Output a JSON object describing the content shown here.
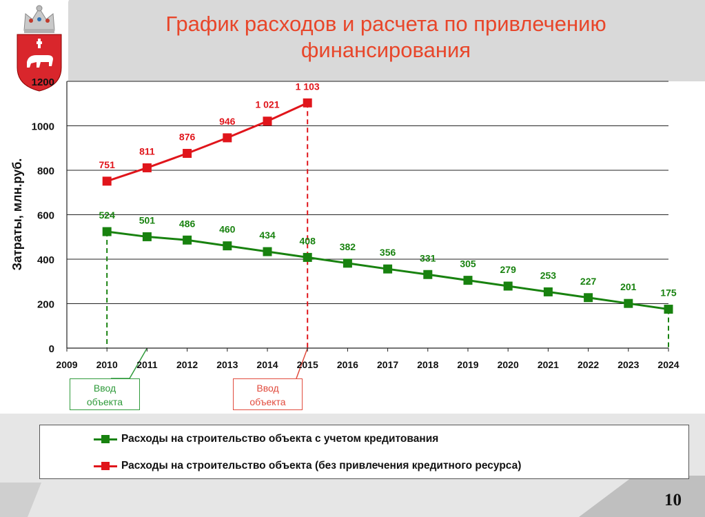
{
  "slide": {
    "title": "График расходов и расчета по привлечению финансирования",
    "page_number": "10",
    "colors": {
      "title": "#e8462a",
      "green": "#18820f",
      "red": "#e0151b",
      "green_callout": "#2e9a3a",
      "red_callout": "#e14a3c"
    },
    "emblem": {
      "icon": "perm-krai-coat-of-arms-icon"
    }
  },
  "legend": {
    "items": [
      {
        "label": "Расходы на строительство объекта с учетом кредитования",
        "color": "#18820f"
      },
      {
        "label": "Расходы на строительство объекта (без привлечения кредитного ресурса)",
        "color": "#e0151b"
      }
    ]
  },
  "callouts": [
    {
      "text_line1": "Ввод",
      "text_line2": "объекта",
      "color": "green"
    },
    {
      "text_line1": "Ввод",
      "text_line2": "объекта",
      "color": "red"
    }
  ],
  "chart_data": {
    "type": "line",
    "title": "График расходов и расчета по привлечению финансирования",
    "ylabel": "Затраты, млн.руб.",
    "xlabel": "",
    "ylim": [
      0,
      1200
    ],
    "yticks": [
      0,
      200,
      400,
      600,
      800,
      1000,
      1200
    ],
    "xlim": [
      2009,
      2024
    ],
    "xticks": [
      2009,
      2010,
      2011,
      2012,
      2013,
      2014,
      2015,
      2016,
      2017,
      2018,
      2019,
      2020,
      2021,
      2022,
      2023,
      2024
    ],
    "grid": true,
    "legend_position": "bottom",
    "series": [
      {
        "name": "Расходы на строительство объекта с учетом кредитования",
        "color": "#18820f",
        "x": [
          2010,
          2011,
          2012,
          2013,
          2014,
          2015,
          2016,
          2017,
          2018,
          2019,
          2020,
          2021,
          2022,
          2023,
          2024
        ],
        "values": [
          524,
          501,
          486,
          460,
          434,
          408,
          382,
          356,
          331,
          305,
          279,
          253,
          227,
          201,
          175
        ],
        "labels": [
          "524",
          "501",
          "486",
          "460",
          "434",
          "408",
          "382",
          "356",
          "331",
          "305",
          "279",
          "253",
          "227",
          "201",
          "175"
        ]
      },
      {
        "name": "Расходы на строительство объекта (без привлечения кредитного ресурса)",
        "color": "#e0151b",
        "x": [
          2010,
          2011,
          2012,
          2013,
          2014,
          2015
        ],
        "values": [
          751,
          811,
          876,
          946,
          1021,
          1103
        ],
        "labels": [
          "751",
          "811",
          "876",
          "946",
          "1 021",
          "1 103"
        ]
      }
    ],
    "annotations": [
      {
        "text": "Ввод объекта",
        "x": 2010,
        "series": 0
      },
      {
        "text": "Ввод объекта",
        "x": 2015,
        "series": 1
      }
    ]
  }
}
